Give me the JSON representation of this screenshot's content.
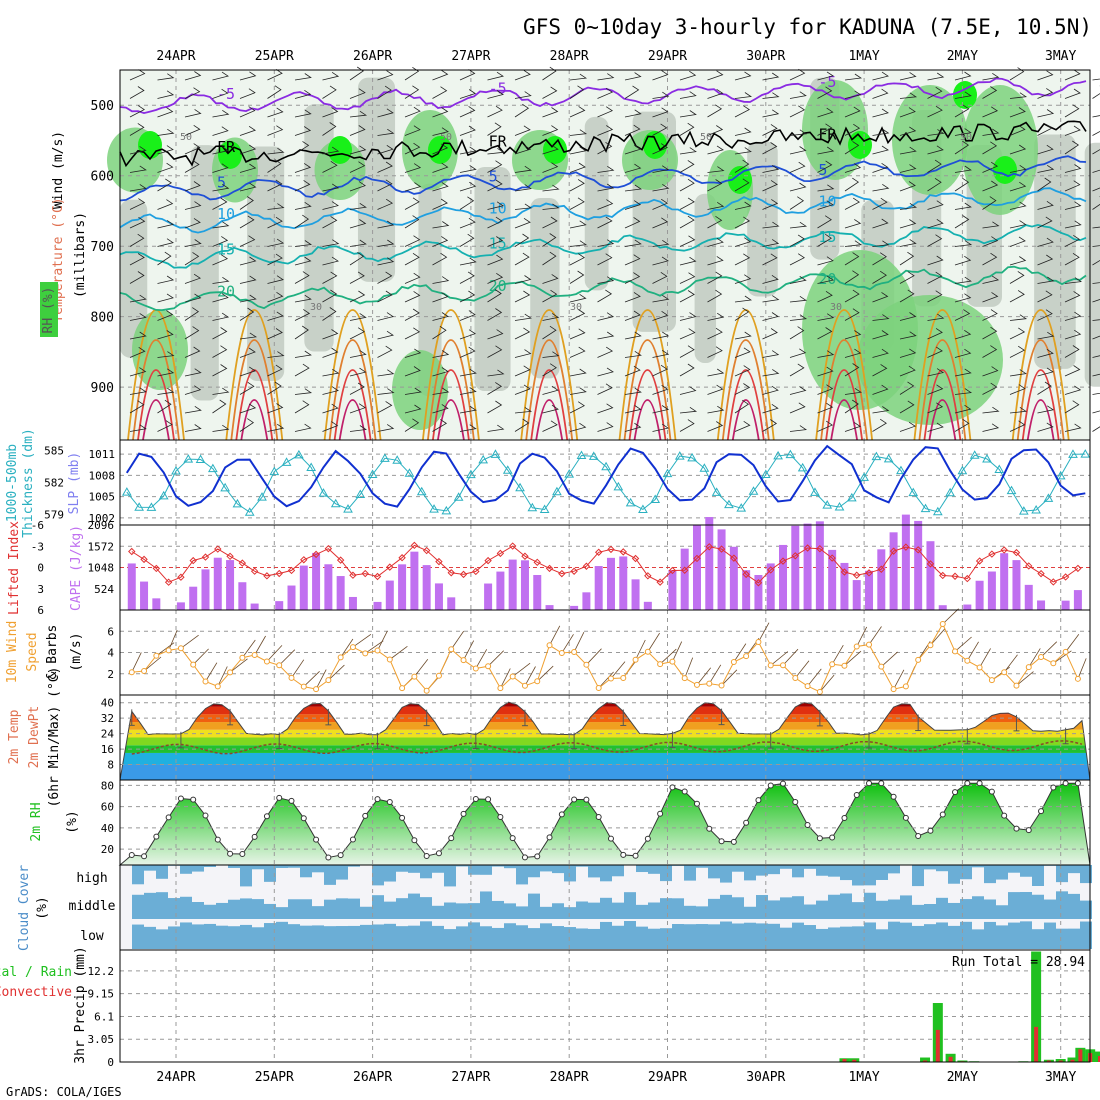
{
  "title": "GFS 0~10day 3-hourly for KADUNA (7.5E, 10.5N)",
  "credit": "GrADS: COLA/IGES",
  "dates": [
    "24APR",
    "25APR",
    "26APR",
    "27APR",
    "28APR",
    "29APR",
    "30APR",
    "1MAY",
    "2MAY",
    "3MAY"
  ],
  "chart_data": [
    {
      "type": "heatmap",
      "panel": "upper-air",
      "ylabel": "(millibars)",
      "ylabel_parts": [
        "Wind (m/s)",
        "Temperature (°C)",
        "RH (%)"
      ],
      "ylim": [
        450,
        975
      ],
      "yticks": [
        "500",
        "600",
        "700",
        "800",
        "900"
      ],
      "ytick_values": [
        500,
        600,
        700,
        800,
        900
      ],
      "isotherms": [
        {
          "label": "-5",
          "color": "#8a2be2",
          "pressure": 500
        },
        {
          "label": "FR",
          "color": "#000000",
          "pressure": 575
        },
        {
          "label": "5",
          "color": "#1f4fd6",
          "pressure": 625
        },
        {
          "label": "10",
          "color": "#1f9fe0",
          "pressure": 670
        },
        {
          "label": "15",
          "color": "#15b0b0",
          "pressure": 720
        },
        {
          "label": "20",
          "color": "#20b080",
          "pressure": 780
        }
      ],
      "rh_contour_labels": [
        "50",
        "30",
        "50",
        "30",
        "50",
        "30",
        "50"
      ]
    },
    {
      "type": "line",
      "panel": "thickness-slp",
      "series": [
        {
          "name": "1000-500mb Thickness (dm)",
          "color": "#2ab0c0",
          "yticks": [
            "585",
            "582",
            "579"
          ],
          "ytick_values": [
            585,
            582,
            579
          ],
          "ylim": [
            578,
            586
          ]
        },
        {
          "name": "SLP (mb)",
          "color": "#1030d0",
          "yticks": [
            "1011",
            "1008",
            "1005",
            "1002"
          ],
          "ytick_values": [
            1011,
            1008,
            1005,
            1002
          ],
          "ylim": [
            1001,
            1013
          ]
        }
      ]
    },
    {
      "type": "bar",
      "panel": "cape-li",
      "series": [
        {
          "name": "CAPE (J/kg)",
          "color": "#c070f0",
          "yticks": [
            "2096",
            "1572",
            "1048",
            "524"
          ],
          "ytick_values": [
            2096,
            1572,
            1048,
            524
          ],
          "ylim": [
            0,
            2096
          ]
        },
        {
          "name": "Lifted Index",
          "color": "#e03030",
          "yticks": [
            "-6",
            "-3",
            "0",
            "3",
            "6"
          ],
          "ytick_values": [
            -6,
            -3,
            0,
            3,
            6
          ],
          "ylim": [
            6,
            -6
          ]
        }
      ]
    },
    {
      "type": "line",
      "panel": "wind10m",
      "series": [
        {
          "name": "10m Wind Speed & Barbs (m/s)",
          "color": "#f0a030",
          "yticks": [
            "2",
            "4",
            "6"
          ],
          "ytick_values": [
            2,
            4,
            6
          ],
          "ylim": [
            0,
            8
          ]
        }
      ]
    },
    {
      "type": "area",
      "panel": "temp2m",
      "series": [
        {
          "name": "2m Temp",
          "color": "#8b0000"
        },
        {
          "name": "2m DewPt",
          "color": "#808080"
        },
        {
          "name": "(6hr Min/Max) (°C)",
          "color": "#555555"
        }
      ],
      "yticks": [
        "8",
        "16",
        "24",
        "32",
        "40"
      ],
      "ytick_values": [
        8,
        16,
        24,
        32,
        40
      ],
      "ylim": [
        0,
        44
      ]
    },
    {
      "type": "area",
      "panel": "rh2m",
      "series": [
        {
          "name": "2m RH",
          "color": "#20c020"
        }
      ],
      "ylabel": "(%)",
      "yticks": [
        "20",
        "40",
        "60",
        "80"
      ],
      "ytick_values": [
        20,
        40,
        60,
        80
      ],
      "ylim": [
        5,
        85
      ]
    },
    {
      "type": "bar",
      "panel": "cloud",
      "ylabel": "Cloud Cover (%)",
      "layers": [
        "high",
        "middle",
        "low"
      ],
      "color": "#6baed6"
    },
    {
      "type": "bar",
      "panel": "precip",
      "ylabel": "3hr Precip (mm)",
      "series": [
        {
          "name": "Total / Rain",
          "color": "#20c020"
        },
        {
          "name": "Convective",
          "color": "#e03030"
        }
      ],
      "yticks": [
        "0",
        "3.05",
        "6.1",
        "9.15",
        "12.2"
      ],
      "ytick_values": [
        0,
        3.05,
        6.1,
        9.15,
        12.2
      ],
      "ylim": [
        0,
        15
      ],
      "annotation": "Run Total = 28.94",
      "bars": [
        {
          "day": 6.8,
          "total": 0.5,
          "conv": 0.4
        },
        {
          "day": 6.9,
          "total": 0.5,
          "conv": 0.3
        },
        {
          "day": 7.62,
          "total": 0.6,
          "conv": 0.2
        },
        {
          "day": 7.75,
          "total": 7.9,
          "conv": 4.3
        },
        {
          "day": 7.88,
          "total": 1.1,
          "conv": 0.7
        },
        {
          "day": 8.0,
          "total": 0.2,
          "conv": 0.1
        },
        {
          "day": 8.12,
          "total": 0.1,
          "conv": 0.05
        },
        {
          "day": 8.62,
          "total": 0.1,
          "conv": 0.0
        },
        {
          "day": 8.75,
          "total": 14.8,
          "conv": 4.7
        },
        {
          "day": 8.88,
          "total": 0.3,
          "conv": 0.2
        },
        {
          "day": 9.0,
          "total": 0.4,
          "conv": 0.2
        },
        {
          "day": 9.12,
          "total": 0.6,
          "conv": 0.3
        },
        {
          "day": 9.2,
          "total": 1.9,
          "conv": 1.7
        },
        {
          "day": 9.3,
          "total": 1.7,
          "conv": 1.2
        },
        {
          "day": 9.4,
          "total": 1.4,
          "conv": 0.8
        }
      ]
    }
  ]
}
